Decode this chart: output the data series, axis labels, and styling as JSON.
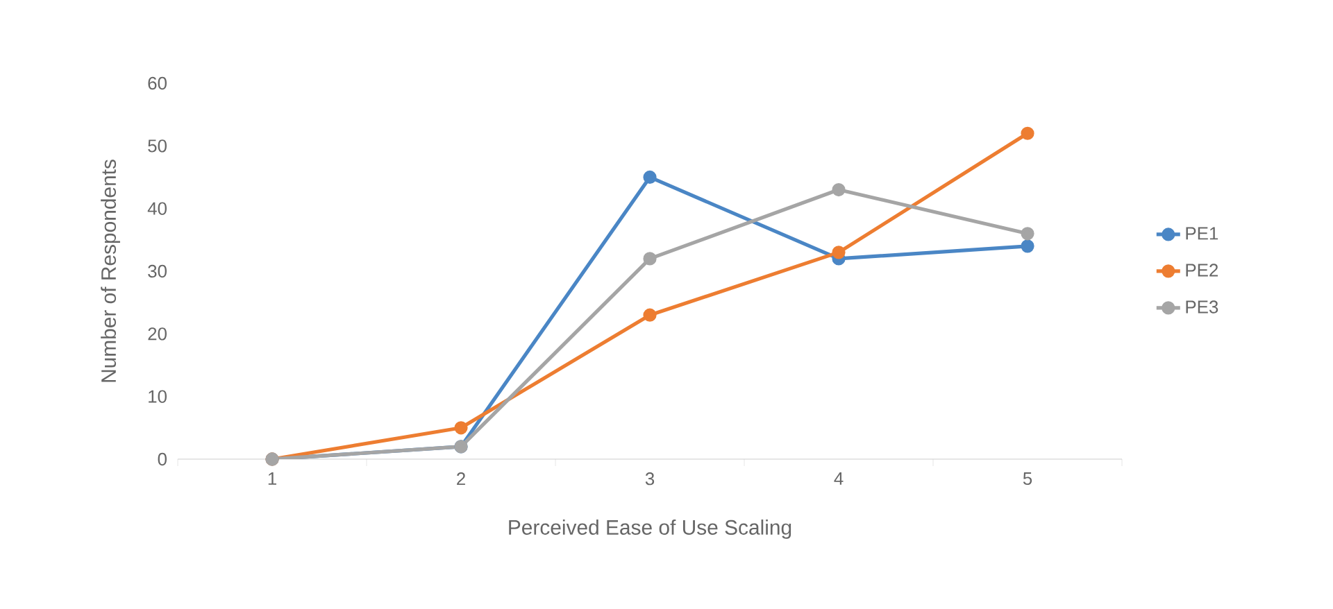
{
  "chart_data": {
    "type": "line",
    "xlabel": "Perceived Ease of Use Scaling",
    "ylabel": "Number of Respondents",
    "categories": [
      "1",
      "2",
      "3",
      "4",
      "5"
    ],
    "series": [
      {
        "name": "PE1",
        "color": "#4a86c5",
        "values": [
          0,
          2,
          45,
          32,
          34
        ]
      },
      {
        "name": "PE2",
        "color": "#ed7d31",
        "values": [
          0,
          5,
          23,
          33,
          52
        ]
      },
      {
        "name": "PE3",
        "color": "#a5a5a5",
        "values": [
          0,
          2,
          32,
          43,
          36
        ]
      }
    ],
    "ylim": [
      0,
      60
    ],
    "yticks": [
      0,
      10,
      20,
      30,
      40,
      50,
      60
    ],
    "grid": false,
    "legend": "right",
    "marker": "circle",
    "line_style": "solid"
  }
}
